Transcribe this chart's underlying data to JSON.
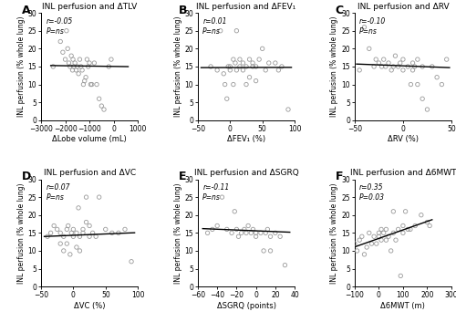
{
  "panels": [
    {
      "label": "A",
      "title": "INL perfusion and ΔTLV",
      "xlabel": "ΔLobe volume (mL)",
      "ylabel": "INL perfusion (% whole lung)",
      "xlim": [
        -3000,
        1000
      ],
      "ylim": [
        0,
        30
      ],
      "xticks": [
        -3000,
        -2000,
        -1000,
        0,
        1000
      ],
      "yticks": [
        0,
        5,
        10,
        15,
        20,
        25,
        30
      ],
      "r_text": "r=-0.05",
      "p_text": "P=ns",
      "line_x": [
        -2600,
        600
      ],
      "line_y": [
        15.28,
        14.98
      ],
      "x": [
        -2500,
        -2200,
        -2100,
        -2000,
        -1950,
        -1900,
        -1850,
        -1800,
        -1750,
        -1700,
        -1680,
        -1650,
        -1600,
        -1550,
        -1500,
        -1450,
        -1400,
        -1350,
        -1300,
        -1250,
        -1200,
        -1150,
        -1100,
        -1050,
        -1000,
        -950,
        -900,
        -800,
        -700,
        -600,
        -500,
        -400,
        -200,
        -100
      ],
      "y": [
        15.0,
        22.0,
        19.0,
        17.0,
        25.0,
        20.0,
        16.0,
        15.0,
        18.0,
        14.0,
        17.0,
        15.0,
        16.0,
        14.0,
        15.0,
        13.0,
        17.0,
        15.0,
        14.0,
        10.0,
        11.0,
        12.0,
        17.0,
        15.0,
        16.0,
        10.0,
        10.0,
        16.0,
        10.0,
        6.0,
        4.0,
        3.0,
        15.0,
        17.0
      ]
    },
    {
      "label": "B",
      "title": "INL perfusion and ΔFEV₁",
      "xlabel": "ΔFEV₁ (%)",
      "ylabel": "INL perfusion (% whole lung)",
      "xlim": [
        -50,
        100
      ],
      "ylim": [
        0,
        30
      ],
      "xticks": [
        -50,
        0,
        50,
        100
      ],
      "yticks": [
        0,
        5,
        10,
        15,
        20,
        25,
        30
      ],
      "r_text": "r=0.01",
      "p_text": "P=ns",
      "line_x": [
        -45,
        95
      ],
      "line_y": [
        14.7,
        14.77
      ],
      "x": [
        -30,
        -20,
        -15,
        -10,
        -8,
        -5,
        -3,
        0,
        0,
        5,
        5,
        8,
        10,
        10,
        15,
        15,
        20,
        20,
        25,
        25,
        30,
        30,
        35,
        35,
        40,
        40,
        45,
        50,
        55,
        60,
        70,
        75,
        80,
        90
      ],
      "y": [
        15,
        14,
        25,
        13,
        10,
        6,
        15,
        15,
        14,
        17,
        10,
        16,
        14,
        25,
        17,
        15,
        16,
        14,
        15,
        10,
        17,
        12,
        16,
        15,
        11,
        15,
        17,
        20,
        14,
        16,
        16,
        14,
        15,
        3
      ]
    },
    {
      "label": "C",
      "title": "INL perfusion and ΔRV",
      "xlabel": "ΔRV (%)",
      "ylabel": "INL perfusion (% whole lung)",
      "xlim": [
        -50,
        50
      ],
      "ylim": [
        0,
        30
      ],
      "xticks": [
        -50,
        0,
        50
      ],
      "yticks": [
        0,
        5,
        10,
        15,
        20,
        25,
        30
      ],
      "r_text": "r=-0.10",
      "p_text": "P=ns",
      "line_x": [
        -48,
        48
      ],
      "line_y": [
        15.7,
        14.7
      ],
      "x": [
        -45,
        -40,
        -35,
        -30,
        -28,
        -25,
        -22,
        -20,
        -18,
        -15,
        -12,
        -10,
        -8,
        -5,
        -3,
        0,
        0,
        5,
        8,
        10,
        10,
        12,
        15,
        15,
        20,
        20,
        25,
        30,
        35,
        40,
        45
      ],
      "y": [
        14,
        26,
        20,
        15,
        17,
        16,
        15,
        17,
        15,
        16,
        14,
        15,
        18,
        15,
        16,
        17,
        14,
        15,
        10,
        16,
        14,
        15,
        17,
        10,
        15,
        6,
        3,
        15,
        12,
        10,
        17
      ]
    },
    {
      "label": "D",
      "title": "INL perfusion and ΔVC",
      "xlabel": "ΔVC (%)",
      "ylabel": "INL perfusion (% whole lung)",
      "xlim": [
        -50,
        100
      ],
      "ylim": [
        0,
        30
      ],
      "xticks": [
        -50,
        0,
        50,
        100
      ],
      "yticks": [
        0,
        5,
        10,
        15,
        20,
        25,
        30
      ],
      "r_text": "r=0.07",
      "p_text": "P=ns",
      "line_x": [
        -45,
        95
      ],
      "line_y": [
        14.0,
        15.05
      ],
      "x": [
        -40,
        -35,
        -30,
        -25,
        -20,
        -20,
        -15,
        -15,
        -10,
        -10,
        -8,
        -5,
        -3,
        0,
        0,
        5,
        5,
        8,
        10,
        10,
        15,
        15,
        20,
        20,
        25,
        25,
        30,
        35,
        40,
        50,
        60,
        70,
        80,
        90
      ],
      "y": [
        14,
        15,
        17,
        16,
        15,
        12,
        14,
        10,
        16,
        12,
        17,
        9,
        15,
        16,
        14,
        15,
        11,
        22,
        14,
        10,
        16,
        15,
        25,
        18,
        17,
        14,
        15,
        14,
        25,
        16,
        15,
        15,
        16,
        7
      ]
    },
    {
      "label": "E",
      "title": "INL perfusion and ΔSGRQ",
      "xlabel": "ΔSGRQ (points)",
      "ylabel": "INL perfusion (% whole lung)",
      "xlim": [
        -60,
        40
      ],
      "ylim": [
        0,
        30
      ],
      "xticks": [
        -60,
        -40,
        -20,
        0,
        20,
        40
      ],
      "yticks": [
        0,
        5,
        10,
        15,
        20,
        25,
        30
      ],
      "r_text": "r=-0.11",
      "p_text": "P=ns",
      "line_x": [
        -55,
        35
      ],
      "line_y": [
        16.2,
        15.2
      ],
      "x": [
        -50,
        -45,
        -40,
        -35,
        -30,
        -25,
        -22,
        -20,
        -18,
        -15,
        -12,
        -10,
        -8,
        -5,
        -3,
        0,
        0,
        5,
        8,
        10,
        12,
        15,
        15,
        20,
        25,
        30
      ],
      "y": [
        15,
        16,
        17,
        25,
        16,
        15,
        21,
        16,
        14,
        15,
        16,
        15,
        17,
        15,
        16,
        15,
        14,
        15,
        10,
        15,
        16,
        14,
        10,
        15,
        14,
        6
      ]
    },
    {
      "label": "F",
      "title": "INL perfusion and Δ6MWT",
      "xlabel": "Δ6MWT (m)",
      "ylabel": "INL perfusion (% whole lung)",
      "xlim": [
        -100,
        300
      ],
      "ylim": [
        0,
        30
      ],
      "xticks": [
        -100,
        0,
        100,
        200,
        300
      ],
      "yticks": [
        0,
        5,
        10,
        15,
        20,
        25,
        30
      ],
      "r_text": "r=0.35",
      "p_text": "P=0.03",
      "line_x": [
        -95,
        220
      ],
      "line_y": [
        11.2,
        18.7
      ],
      "x": [
        -100,
        -90,
        -80,
        -70,
        -60,
        -50,
        -40,
        -30,
        -20,
        -10,
        0,
        0,
        10,
        10,
        20,
        30,
        30,
        40,
        50,
        60,
        60,
        70,
        80,
        90,
        100,
        100,
        110,
        120,
        130,
        150,
        175,
        200,
        210
      ],
      "y": [
        12,
        10,
        13,
        14,
        9,
        11,
        15,
        12,
        14,
        12,
        15,
        14,
        16,
        13,
        15,
        13,
        16,
        14,
        10,
        15,
        21,
        13,
        16,
        3,
        17,
        15,
        21,
        16,
        16,
        17,
        20,
        18,
        17
      ]
    }
  ]
}
